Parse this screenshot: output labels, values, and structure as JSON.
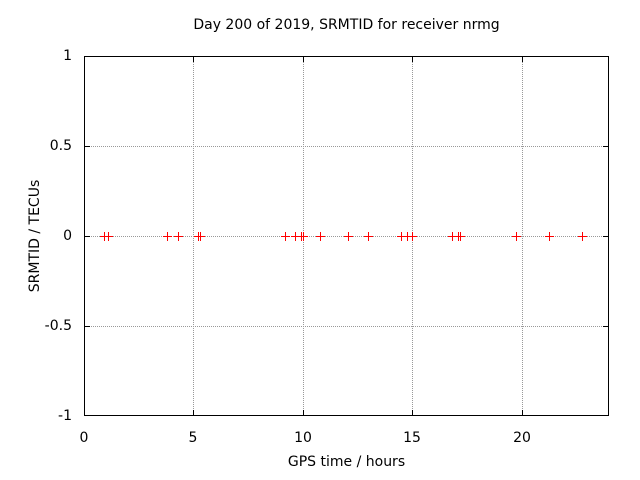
{
  "title": "Day 200 of 2019, SRMTID for receiver nrmg",
  "colors": {
    "marker": "#ff0000",
    "grid": "#999999",
    "axis": "#000000",
    "background": "#ffffff"
  },
  "chart_data": {
    "type": "scatter",
    "title": "Day 200 of 2019, SRMTID for receiver nrmg",
    "xlabel": "GPS time / hours",
    "ylabel": "SRMTID / TECUs",
    "xlim": [
      0,
      24
    ],
    "ylim": [
      -1,
      1
    ],
    "x_tick_labels": [
      "0",
      "5",
      "10",
      "15",
      "20"
    ],
    "y_tick_labels": [
      "1",
      "0.5",
      "0",
      "-0.5",
      "-1"
    ],
    "grid": true,
    "legend": "none",
    "marker_style": "plus",
    "series": [
      {
        "name": "SRMTID",
        "color": "#ff0000",
        "x": [
          0.9,
          1.1,
          3.8,
          4.3,
          5.2,
          5.3,
          9.2,
          9.65,
          9.9,
          10.0,
          10.8,
          12.05,
          13.0,
          14.5,
          14.75,
          15.0,
          16.8,
          17.1,
          17.2,
          19.75,
          21.25,
          22.75
        ],
        "y": [
          0,
          0,
          0,
          0,
          0,
          0,
          0,
          0,
          0,
          0,
          0,
          0,
          0,
          0,
          0,
          0,
          0,
          0,
          0,
          0,
          0,
          0
        ]
      }
    ]
  }
}
